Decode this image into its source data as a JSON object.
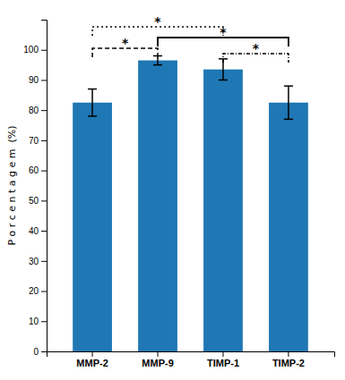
{
  "chart_data": {
    "type": "bar",
    "categories": [
      "MMP-2",
      "MMP-9",
      "TIMP-1",
      "TIMP-2"
    ],
    "values": [
      82.5,
      96.5,
      93.5,
      82.5
    ],
    "errors": [
      4.5,
      1.5,
      3.5,
      5.5
    ],
    "ylabel": "P o r c e n t a g e m  (%)",
    "ylim": [
      0,
      110
    ],
    "yticks": [
      0,
      10,
      20,
      30,
      40,
      50,
      60,
      70,
      80,
      90,
      100
    ],
    "grid": false,
    "annotations": [
      {
        "text": "*",
        "from": "MMP-2",
        "to": "TIMP-1",
        "line_style": "dotted"
      },
      {
        "text": "*",
        "from": "MMP-9",
        "to": "TIMP-2",
        "line_style": "solid"
      },
      {
        "text": "*",
        "from": "MMP-2",
        "to": "MMP-9",
        "line_style": "dashed"
      },
      {
        "text": "*",
        "from": "TIMP-1",
        "to": "TIMP-2",
        "line_style": "dashdot"
      }
    ]
  }
}
